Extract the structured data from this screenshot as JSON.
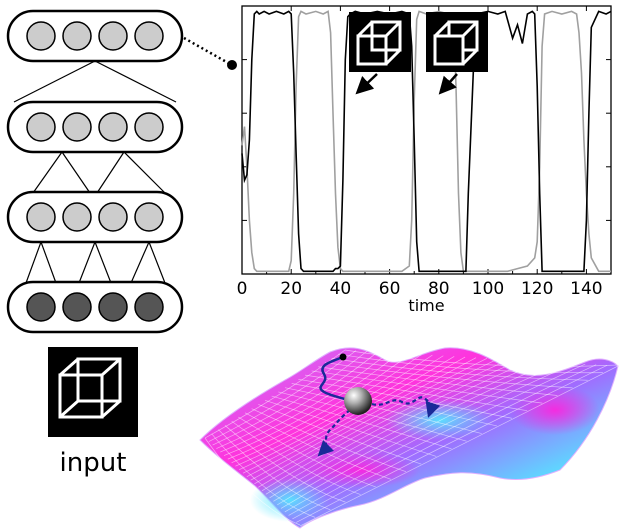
{
  "network": {
    "layers": [
      {
        "nodes": 4,
        "fill": "#cccccc"
      },
      {
        "nodes": 4,
        "fill": "#cccccc"
      },
      {
        "nodes": 4,
        "fill": "#cccccc"
      },
      {
        "nodes": 4,
        "fill": "#555555"
      }
    ],
    "input_label": "input",
    "input_icon": "necker-cube-icon"
  },
  "chart_data": {
    "type": "line",
    "xlabel": "time",
    "xlim": [
      0,
      150
    ],
    "ylim": [
      0,
      1
    ],
    "xticks": [
      0,
      20,
      40,
      60,
      80,
      100,
      120,
      140
    ],
    "grid": false,
    "colors": {
      "series_a": "#000000",
      "series_b": "#a0a0a0"
    },
    "series": [
      {
        "x": [
          0,
          1,
          2,
          3,
          4,
          5,
          6,
          7,
          9,
          11,
          14,
          17,
          19,
          20,
          21,
          22,
          23,
          24,
          25,
          27,
          30,
          33,
          35,
          36,
          37,
          38,
          39,
          40,
          41,
          42,
          43,
          44,
          46,
          50,
          55,
          60,
          65,
          68,
          69,
          70,
          71,
          72,
          75,
          80,
          85,
          88,
          89,
          90,
          91,
          92,
          95,
          100,
          104,
          107,
          110,
          112,
          114,
          116,
          118,
          119,
          120,
          121,
          122,
          125,
          130,
          134,
          135,
          136,
          137,
          138,
          139,
          140,
          141,
          142,
          145,
          148,
          150
        ],
        "y": [
          0.45,
          0.35,
          0.37,
          0.5,
          0.8,
          0.97,
          0.98,
          0.97,
          0.98,
          0.97,
          0.98,
          0.97,
          0.98,
          0.97,
          0.75,
          0.45,
          0.15,
          0.02,
          0.01,
          0.01,
          0.01,
          0.01,
          0.01,
          0.01,
          0.01,
          0.02,
          0.02,
          0.03,
          0.35,
          0.8,
          0.96,
          0.97,
          0.98,
          0.97,
          0.98,
          0.97,
          0.98,
          0.97,
          0.85,
          0.5,
          0.12,
          0.01,
          0.01,
          0.01,
          0.01,
          0.01,
          0.01,
          0.01,
          0.01,
          0.3,
          0.97,
          0.98,
          0.97,
          0.98,
          0.88,
          0.93,
          0.86,
          0.97,
          0.98,
          0.97,
          0.7,
          0.3,
          0.01,
          0.01,
          0.01,
          0.01,
          0.01,
          0.01,
          0.01,
          0.01,
          0.01,
          0.2,
          0.6,
          0.92,
          0.98,
          0.97,
          0.98
        ]
      },
      {
        "x": [
          0,
          1,
          2,
          3,
          4,
          5,
          6,
          8,
          12,
          16,
          19,
          20,
          21,
          22,
          23,
          24,
          26,
          30,
          33,
          35,
          36,
          37,
          38,
          39,
          40,
          41,
          42,
          43,
          44,
          46,
          50,
          55,
          60,
          65,
          68,
          69,
          70,
          71,
          72,
          75,
          80,
          84,
          86,
          87,
          88,
          89,
          90,
          92,
          96,
          100,
          104,
          108,
          112,
          116,
          119,
          120,
          121,
          122,
          123,
          126,
          130,
          134,
          136,
          137,
          138,
          139,
          140,
          141,
          142,
          145,
          148,
          150
        ],
        "y": [
          0.48,
          0.55,
          0.4,
          0.2,
          0.08,
          0.02,
          0.01,
          0.01,
          0.01,
          0.01,
          0.01,
          0.05,
          0.3,
          0.7,
          0.96,
          0.98,
          0.97,
          0.98,
          0.97,
          0.98,
          0.9,
          0.6,
          0.3,
          0.1,
          0.02,
          0.01,
          0.01,
          0.01,
          0.01,
          0.01,
          0.01,
          0.01,
          0.01,
          0.01,
          0.03,
          0.2,
          0.65,
          0.95,
          0.98,
          0.97,
          0.98,
          0.97,
          0.97,
          0.7,
          0.3,
          0.08,
          0.01,
          0.01,
          0.01,
          0.01,
          0.01,
          0.01,
          0.02,
          0.03,
          0.06,
          0.12,
          0.4,
          0.85,
          0.97,
          0.98,
          0.97,
          0.98,
          0.97,
          0.9,
          0.75,
          0.5,
          0.3,
          0.15,
          0.06,
          0.01,
          0.01,
          0.01
        ]
      }
    ]
  },
  "landscape": {
    "colors": {
      "high": "#ff33dd",
      "low": "#55e6ff",
      "path": "#1a2a99"
    }
  }
}
